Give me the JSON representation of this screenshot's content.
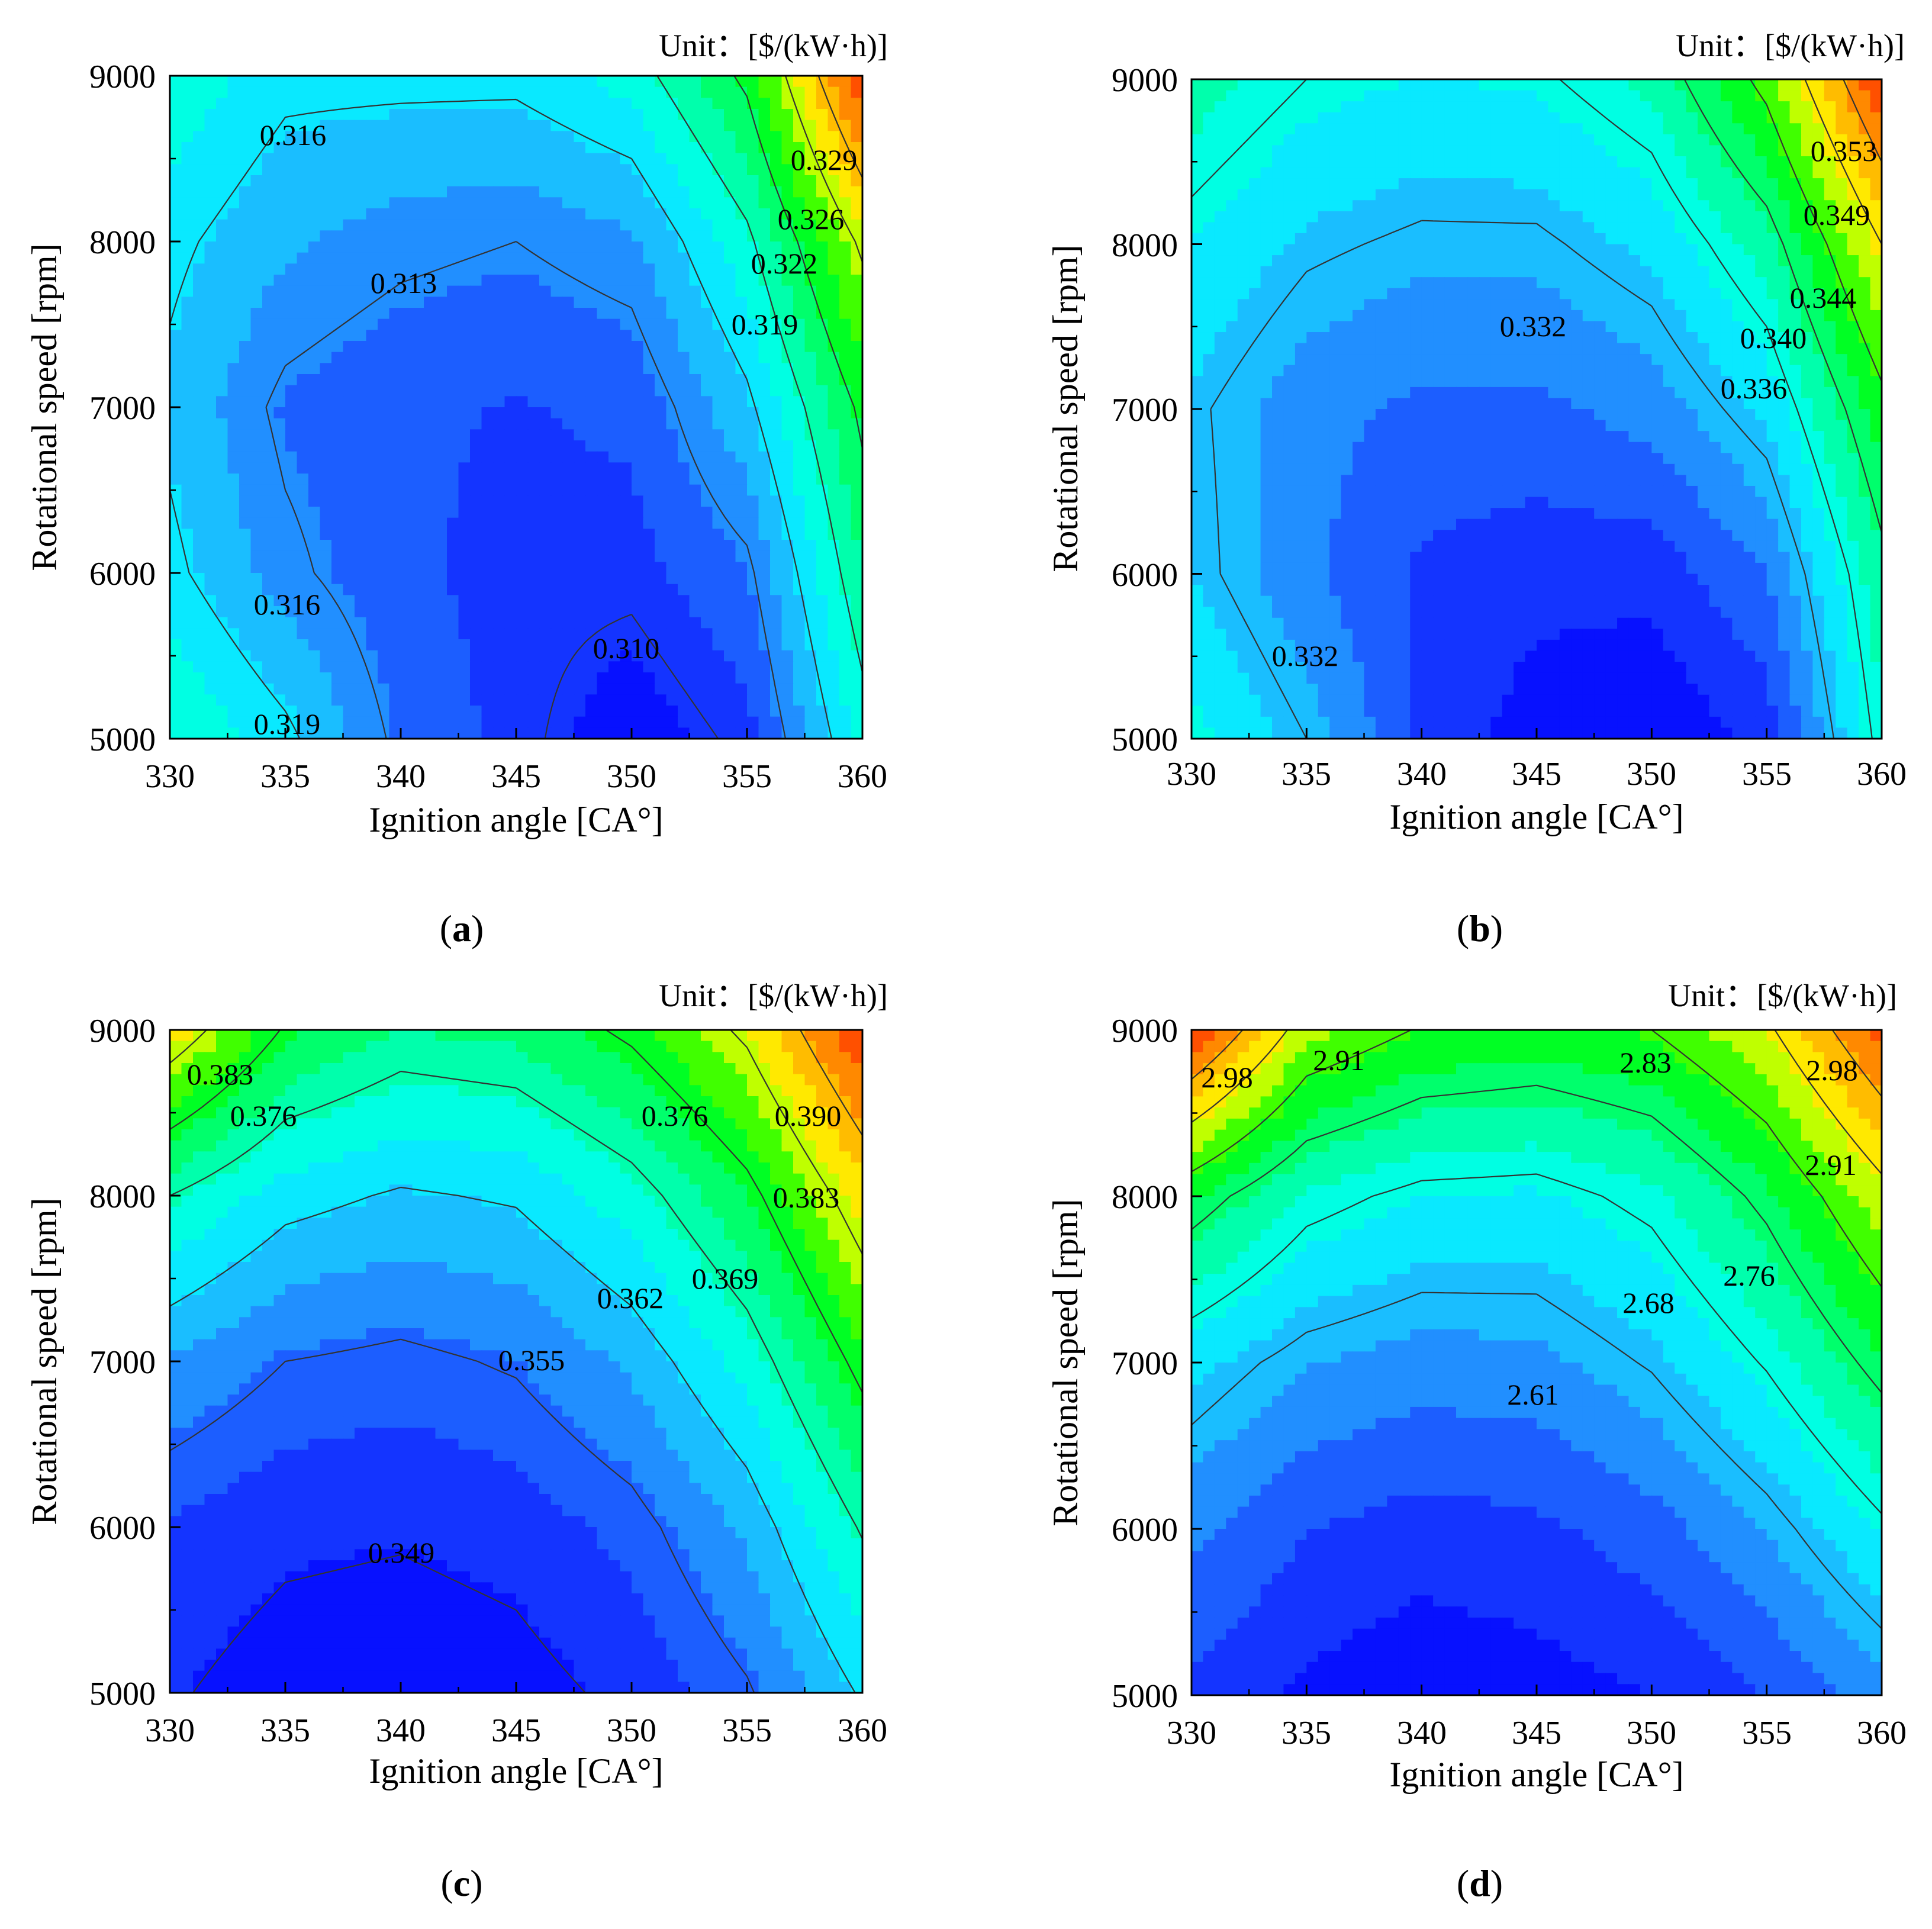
{
  "figure": {
    "panel_labels": [
      "a",
      "b",
      "c",
      "d"
    ],
    "colormap": [
      "#0000ff",
      "#1a45ff",
      "#23a8ff",
      "#00ffff",
      "#00ff90",
      "#00ff00",
      "#ffff00",
      "#ffa500",
      "#ff3300"
    ]
  },
  "chart_data": [
    {
      "type": "contour",
      "panel": "a",
      "unit_label": "Unit：[$/(kW·h)]",
      "xlabel": "Ignition angle [CA°]",
      "ylabel": "Rotational speed [rpm]",
      "x_ticks": [
        330,
        335,
        340,
        345,
        350,
        355,
        360
      ],
      "y_ticks": [
        5000,
        6000,
        7000,
        8000,
        9000
      ],
      "xlim": [
        330,
        360
      ],
      "ylim": [
        5000,
        9000
      ],
      "x": [
        330,
        335,
        340,
        345,
        350,
        355,
        360
      ],
      "y": [
        5000,
        6000,
        7000,
        8000,
        9000
      ],
      "z": [
        [
          0.319,
          0.3165,
          0.3125,
          0.3105,
          0.3085,
          0.3105,
          0.318
        ],
        [
          0.3165,
          0.3135,
          0.3115,
          0.3105,
          0.3105,
          0.3125,
          0.3205
        ],
        [
          0.3155,
          0.3125,
          0.3115,
          0.311,
          0.3115,
          0.3155,
          0.3225
        ],
        [
          0.3165,
          0.3145,
          0.3135,
          0.313,
          0.314,
          0.3185,
          0.3265
        ],
        [
          0.3185,
          0.3165,
          0.3165,
          0.3165,
          0.318,
          0.3225,
          0.333
        ]
      ],
      "zmin": 0.308,
      "zmax": 0.333,
      "contour_levels": [
        0.31,
        0.313,
        0.316,
        0.319,
        0.322,
        0.326,
        0.329
      ],
      "contour_labels": [
        "0.316",
        "0.313",
        "0.316",
        "0.310",
        "0.319",
        "0.329",
        "0.326",
        "0.322",
        "0.319"
      ]
    },
    {
      "type": "contour",
      "panel": "b",
      "unit_label": "Unit：[$/(kW·h)]",
      "xlabel": "Ignition angle [CA°]",
      "ylabel": "Rotational speed [rpm]",
      "x_ticks": [
        330,
        335,
        340,
        345,
        350,
        355,
        360
      ],
      "y_ticks": [
        5000,
        6000,
        7000,
        8000,
        9000
      ],
      "xlim": [
        330,
        360
      ],
      "ylim": [
        5000,
        9000
      ],
      "x": [
        330,
        335,
        340,
        345,
        350,
        355,
        360
      ],
      "y": [
        5000,
        6000,
        7000,
        8000,
        9000
      ],
      "z": [
        [
          0.336,
          0.332,
          0.326,
          0.323,
          0.322,
          0.325,
          0.337
        ],
        [
          0.333,
          0.329,
          0.326,
          0.325,
          0.325,
          0.3285,
          0.339
        ],
        [
          0.3325,
          0.3295,
          0.328,
          0.328,
          0.3295,
          0.3335,
          0.343
        ],
        [
          0.335,
          0.3325,
          0.3315,
          0.3315,
          0.3335,
          0.3385,
          0.349
        ],
        [
          0.3385,
          0.336,
          0.335,
          0.3355,
          0.338,
          0.345,
          0.357
        ]
      ],
      "zmin": 0.322,
      "zmax": 0.357,
      "contour_levels": [
        0.332,
        0.336,
        0.34,
        0.344,
        0.349,
        0.353
      ],
      "contour_labels": [
        "0.353",
        "0.349",
        "0.344",
        "0.340",
        "0.336",
        "0.332",
        "0.332"
      ]
    },
    {
      "type": "contour",
      "panel": "c",
      "unit_label": "Unit：[$/(kW·h)]",
      "xlabel": "Ignition angle [CA°]",
      "ylabel": "Rotational speed [rpm]",
      "x_ticks": [
        330,
        335,
        340,
        345,
        350,
        355,
        360
      ],
      "y_ticks": [
        5000,
        6000,
        7000,
        8000,
        9000
      ],
      "xlim": [
        330,
        360
      ],
      "ylim": [
        5000,
        9000
      ],
      "x": [
        330,
        335,
        340,
        345,
        350,
        355,
        360
      ],
      "y": [
        5000,
        6000,
        7000,
        8000,
        9000
      ],
      "z": [
        [
          0.3495,
          0.347,
          0.3465,
          0.3475,
          0.35,
          0.3545,
          0.3625
        ],
        [
          0.352,
          0.35,
          0.3495,
          0.3505,
          0.3535,
          0.3595,
          0.3695
        ],
        [
          0.3585,
          0.355,
          0.354,
          0.3555,
          0.3595,
          0.3665,
          0.3775
        ],
        [
          0.369,
          0.3635,
          0.3615,
          0.3625,
          0.367,
          0.3745,
          0.386
        ],
        [
          0.3865,
          0.3755,
          0.3715,
          0.3725,
          0.377,
          0.384,
          0.397
        ]
      ],
      "zmin": 0.346,
      "zmax": 0.397,
      "contour_levels": [
        0.349,
        0.355,
        0.362,
        0.369,
        0.376,
        0.383,
        0.39
      ],
      "contour_labels": [
        "0.383",
        "0.376",
        "0.376",
        "0.390",
        "0.383",
        "0.369",
        "0.362",
        "0.355",
        "0.349"
      ]
    },
    {
      "type": "contour",
      "panel": "d",
      "unit_label": "Unit：[$/(kW·h)]",
      "xlabel": "Ignition angle [CA°]",
      "ylabel": "Rotational speed [rpm]",
      "x_ticks": [
        330,
        335,
        340,
        345,
        350,
        355,
        360
      ],
      "y_ticks": [
        5000,
        6000,
        7000,
        8000,
        9000
      ],
      "xlim": [
        330,
        360
      ],
      "ylim": [
        5000,
        9000
      ],
      "x": [
        330,
        335,
        340,
        345,
        350,
        355,
        360
      ],
      "y": [
        5000,
        6000,
        7000,
        8000,
        9000
      ],
      "z": [
        [
          2.5,
          2.46,
          2.44,
          2.45,
          2.47,
          2.51,
          2.57
        ],
        [
          2.56,
          2.51,
          2.49,
          2.5,
          2.53,
          2.59,
          2.67
        ],
        [
          2.64,
          2.59,
          2.57,
          2.575,
          2.615,
          2.685,
          2.78
        ],
        [
          2.79,
          2.7,
          2.665,
          2.66,
          2.695,
          2.775,
          2.89
        ],
        [
          3.06,
          2.88,
          2.825,
          2.81,
          2.83,
          2.9,
          3.04
        ]
      ],
      "zmin": 2.43,
      "zmax": 3.06,
      "contour_levels": [
        2.61,
        2.68,
        2.76,
        2.83,
        2.91,
        2.98
      ],
      "contour_labels": [
        "2.98",
        "2.91",
        "2.83",
        "2.98",
        "2.91",
        "2.76",
        "2.68",
        "2.61"
      ]
    }
  ]
}
